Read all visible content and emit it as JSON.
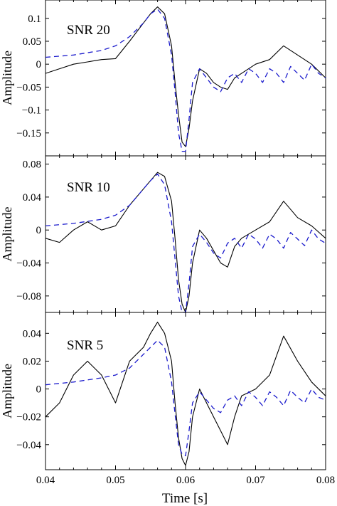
{
  "figure": {
    "xlabel": "Time [s]"
  },
  "colors": {
    "measured": "#000000",
    "model": "#1a1acc",
    "frame": "#000000"
  },
  "chart_data": [
    {
      "type": "line",
      "title": "SNR 20",
      "ylabel": "Amplitude",
      "xlim": [
        0.04,
        0.08
      ],
      "ylim": [
        -0.2,
        0.14
      ],
      "yticks": [
        0.1,
        0.05,
        0,
        -0.05,
        -0.1,
        -0.15
      ],
      "ytick_labels": [
        "0.1",
        "0.05",
        "0",
        "−0.05",
        "−0.1",
        "−0.15"
      ],
      "series": [
        {
          "style": "solid",
          "x": [
            0.04,
            0.042,
            0.044,
            0.046,
            0.048,
            0.05,
            0.052,
            0.054,
            0.055,
            0.056,
            0.057,
            0.058,
            0.0585,
            0.059,
            0.0595,
            0.06,
            0.0605,
            0.061,
            0.062,
            0.063,
            0.064,
            0.065,
            0.066,
            0.067,
            0.068,
            0.07,
            0.072,
            0.074,
            0.076,
            0.078,
            0.08
          ],
          "y": [
            -0.02,
            -0.01,
            0.0,
            0.005,
            0.01,
            0.012,
            0.05,
            0.09,
            0.11,
            0.125,
            0.11,
            0.04,
            -0.04,
            -0.11,
            -0.17,
            -0.18,
            -0.14,
            -0.08,
            -0.01,
            -0.02,
            -0.04,
            -0.05,
            -0.055,
            -0.03,
            -0.02,
            0.0,
            0.01,
            0.04,
            0.02,
            0.0,
            -0.03
          ]
        },
        {
          "style": "dashed",
          "x": [
            0.04,
            0.044,
            0.048,
            0.05,
            0.052,
            0.054,
            0.055,
            0.056,
            0.057,
            0.058,
            0.0585,
            0.059,
            0.0595,
            0.06,
            0.0605,
            0.061,
            0.062,
            0.063,
            0.064,
            0.065,
            0.066,
            0.067,
            0.068,
            0.069,
            0.07,
            0.071,
            0.072,
            0.073,
            0.074,
            0.075,
            0.076,
            0.077,
            0.078,
            0.079,
            0.08
          ],
          "y": [
            0.015,
            0.02,
            0.03,
            0.04,
            0.06,
            0.09,
            0.11,
            0.12,
            0.1,
            0.02,
            -0.06,
            -0.15,
            -0.19,
            -0.19,
            -0.12,
            -0.04,
            -0.01,
            -0.03,
            -0.05,
            -0.06,
            -0.03,
            -0.02,
            -0.04,
            -0.01,
            -0.02,
            -0.04,
            -0.01,
            -0.02,
            -0.04,
            -0.005,
            -0.02,
            -0.035,
            0.0,
            -0.02,
            -0.03
          ]
        }
      ]
    },
    {
      "type": "line",
      "title": "SNR 10",
      "ylabel": "Amplitude",
      "xlim": [
        0.04,
        0.08
      ],
      "ylim": [
        -0.1,
        0.09
      ],
      "yticks": [
        0.08,
        0.04,
        0,
        -0.04,
        -0.08
      ],
      "ytick_labels": [
        "0.08",
        "0.04",
        "0",
        "−0.04",
        "−0.08"
      ],
      "series": [
        {
          "style": "solid",
          "x": [
            0.04,
            0.042,
            0.044,
            0.046,
            0.048,
            0.05,
            0.052,
            0.054,
            0.055,
            0.056,
            0.057,
            0.058,
            0.0585,
            0.059,
            0.0595,
            0.06,
            0.0605,
            0.061,
            0.062,
            0.063,
            0.064,
            0.065,
            0.066,
            0.067,
            0.068,
            0.07,
            0.072,
            0.074,
            0.076,
            0.078,
            0.08
          ],
          "y": [
            -0.01,
            -0.015,
            0.0,
            0.01,
            0.0,
            0.005,
            0.03,
            0.05,
            0.06,
            0.07,
            0.065,
            0.035,
            -0.01,
            -0.06,
            -0.09,
            -0.1,
            -0.08,
            -0.04,
            0.0,
            -0.01,
            -0.025,
            -0.04,
            -0.045,
            -0.02,
            -0.01,
            0.0,
            0.01,
            0.035,
            0.015,
            0.005,
            -0.01
          ]
        },
        {
          "style": "dashed",
          "x": [
            0.04,
            0.044,
            0.048,
            0.05,
            0.052,
            0.054,
            0.055,
            0.056,
            0.057,
            0.058,
            0.0585,
            0.059,
            0.0595,
            0.06,
            0.0605,
            0.061,
            0.062,
            0.063,
            0.064,
            0.065,
            0.066,
            0.067,
            0.068,
            0.069,
            0.07,
            0.071,
            0.072,
            0.073,
            0.074,
            0.075,
            0.076,
            0.077,
            0.078,
            0.079,
            0.08
          ],
          "y": [
            0.005,
            0.008,
            0.013,
            0.018,
            0.03,
            0.05,
            0.06,
            0.068,
            0.055,
            0.01,
            -0.035,
            -0.08,
            -0.1,
            -0.1,
            -0.065,
            -0.02,
            -0.005,
            -0.015,
            -0.028,
            -0.034,
            -0.016,
            -0.01,
            -0.022,
            -0.005,
            -0.011,
            -0.022,
            -0.005,
            -0.011,
            -0.022,
            -0.003,
            -0.011,
            -0.019,
            0.0,
            -0.011,
            -0.016
          ]
        }
      ]
    },
    {
      "type": "line",
      "title": "SNR 5",
      "ylabel": "Amplitude",
      "xlabel": "Time [s]",
      "xlim": [
        0.04,
        0.08
      ],
      "ylim": [
        -0.058,
        0.055
      ],
      "xticks": [
        0.04,
        0.05,
        0.06,
        0.07,
        0.08
      ],
      "xtick_labels": [
        "0.04",
        "0.05",
        "0.06",
        "0.07",
        "0.08"
      ],
      "yticks": [
        0.04,
        0.02,
        0,
        -0.02,
        -0.04
      ],
      "ytick_labels": [
        "0.04",
        "0.02",
        "0",
        "−0.02",
        "−0.04"
      ],
      "series": [
        {
          "style": "solid",
          "x": [
            0.04,
            0.042,
            0.044,
            0.046,
            0.048,
            0.05,
            0.052,
            0.054,
            0.055,
            0.056,
            0.057,
            0.058,
            0.0585,
            0.059,
            0.0595,
            0.06,
            0.0605,
            0.061,
            0.062,
            0.063,
            0.064,
            0.065,
            0.066,
            0.067,
            0.068,
            0.07,
            0.072,
            0.074,
            0.076,
            0.078,
            0.08
          ],
          "y": [
            -0.02,
            -0.01,
            0.01,
            0.02,
            0.01,
            -0.01,
            0.02,
            0.03,
            0.04,
            0.048,
            0.04,
            0.02,
            -0.01,
            -0.035,
            -0.05,
            -0.055,
            -0.045,
            -0.02,
            0.0,
            -0.01,
            -0.02,
            -0.03,
            -0.04,
            -0.02,
            -0.005,
            0.0,
            0.01,
            0.038,
            0.02,
            0.005,
            -0.005
          ]
        },
        {
          "style": "dashed",
          "x": [
            0.04,
            0.044,
            0.048,
            0.05,
            0.052,
            0.054,
            0.055,
            0.056,
            0.057,
            0.058,
            0.0585,
            0.059,
            0.0595,
            0.06,
            0.0605,
            0.061,
            0.062,
            0.063,
            0.064,
            0.065,
            0.066,
            0.067,
            0.068,
            0.069,
            0.07,
            0.071,
            0.072,
            0.073,
            0.074,
            0.075,
            0.076,
            0.077,
            0.078,
            0.079,
            0.08
          ],
          "y": [
            0.003,
            0.005,
            0.008,
            0.01,
            0.015,
            0.025,
            0.03,
            0.035,
            0.03,
            0.005,
            -0.018,
            -0.04,
            -0.047,
            -0.048,
            -0.03,
            -0.01,
            -0.002,
            -0.008,
            -0.014,
            -0.017,
            -0.008,
            -0.005,
            -0.012,
            -0.002,
            -0.006,
            -0.012,
            -0.002,
            -0.006,
            -0.012,
            -0.001,
            -0.006,
            -0.01,
            0.0,
            -0.006,
            -0.008
          ]
        }
      ]
    }
  ]
}
